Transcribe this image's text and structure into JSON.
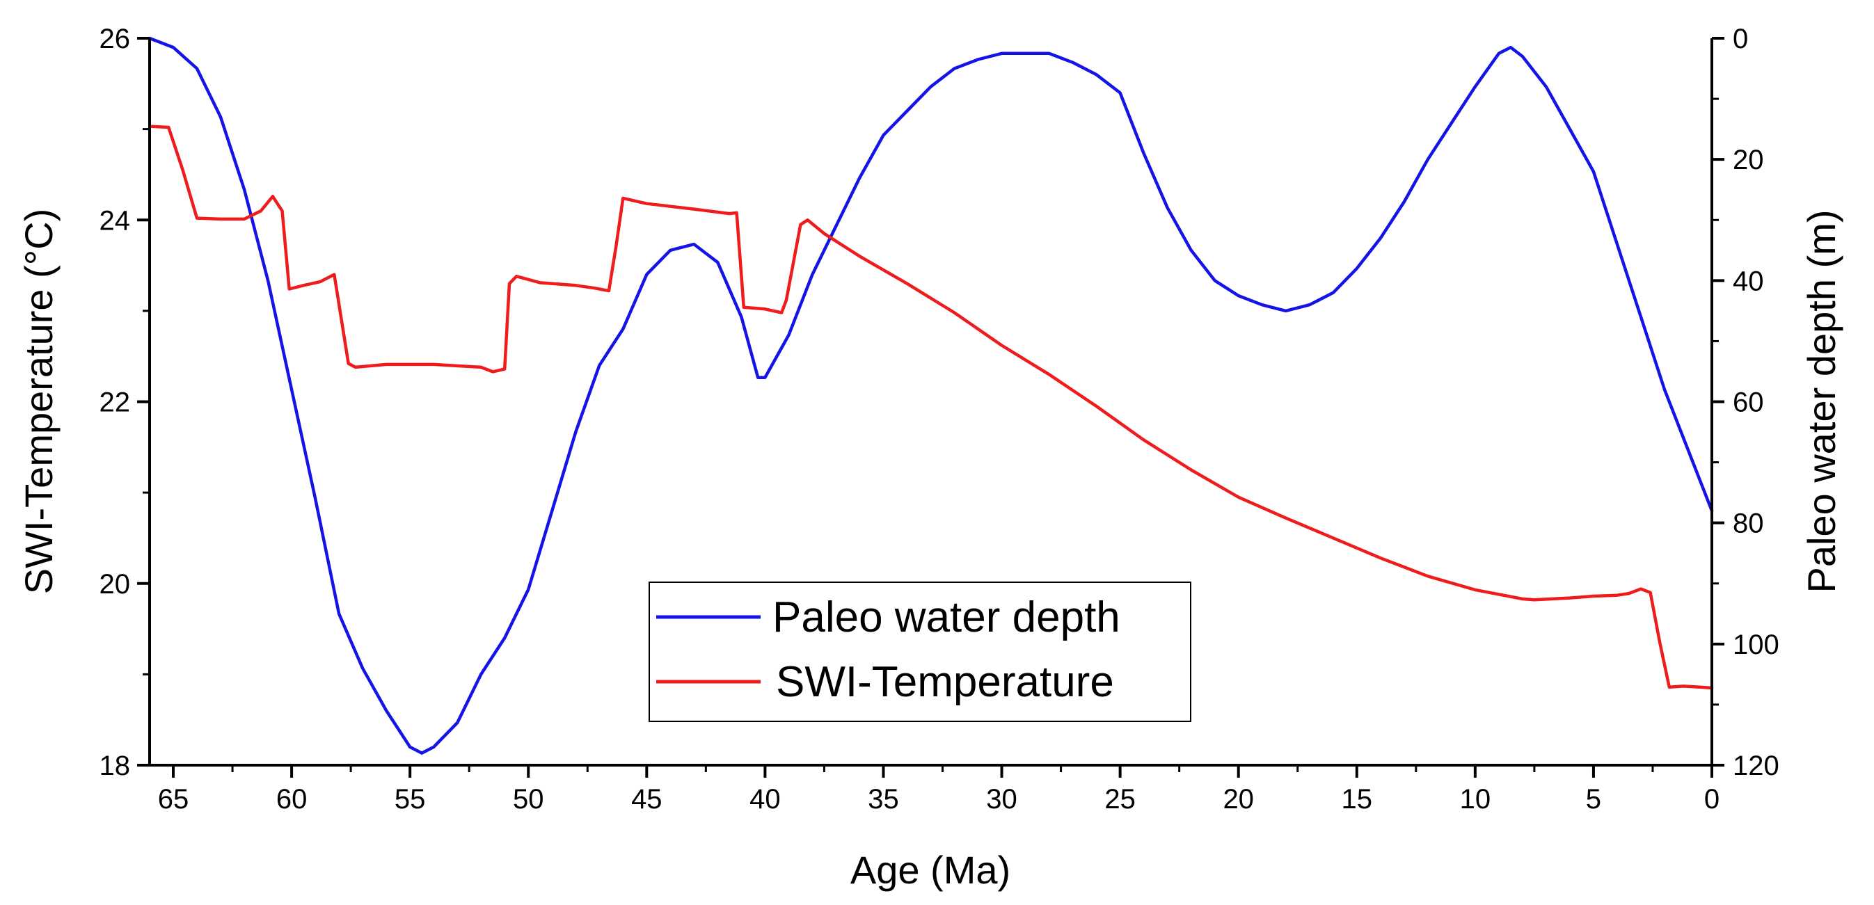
{
  "chart_data": {
    "type": "line",
    "title": "",
    "xlabel": "Age (Ma)",
    "ylabel_left": "SWI-Temperature (°C)",
    "ylabel_right": "Paleo water depth (m)",
    "xlim": [
      66,
      0
    ],
    "ylim_left": [
      18,
      26
    ],
    "ylim_right": [
      120,
      0
    ],
    "x_ticks": [
      "65",
      "60",
      "55",
      "50",
      "45",
      "40",
      "35",
      "30",
      "25",
      "20",
      "15",
      "10",
      "5",
      "0"
    ],
    "left_ticks": [
      "26",
      "24",
      "22",
      "20",
      "18"
    ],
    "right_ticks": [
      "0",
      "20",
      "40",
      "60",
      "80",
      "100",
      "120"
    ],
    "grid": false,
    "legend_position": "bottom-center",
    "series": [
      {
        "name": "Paleo water depth",
        "axis": "right",
        "color": "#1414e6",
        "points": [
          [
            66,
            0
          ],
          [
            65,
            1.5
          ],
          [
            64,
            5
          ],
          [
            63,
            13
          ],
          [
            62,
            25
          ],
          [
            61,
            40
          ],
          [
            60,
            58
          ],
          [
            59,
            76
          ],
          [
            58,
            95
          ],
          [
            57,
            104
          ],
          [
            56,
            111
          ],
          [
            55,
            117
          ],
          [
            54.5,
            118
          ],
          [
            54,
            117
          ],
          [
            53,
            113
          ],
          [
            52,
            105
          ],
          [
            51,
            99
          ],
          [
            50,
            91
          ],
          [
            49,
            78
          ],
          [
            48,
            65
          ],
          [
            47,
            54
          ],
          [
            46,
            48
          ],
          [
            45,
            39
          ],
          [
            44,
            35
          ],
          [
            43,
            34
          ],
          [
            42,
            37
          ],
          [
            41,
            46
          ],
          [
            40.3,
            56
          ],
          [
            40,
            56
          ],
          [
            39,
            49
          ],
          [
            38,
            39
          ],
          [
            37,
            31
          ],
          [
            36,
            23
          ],
          [
            35,
            16
          ],
          [
            34,
            12
          ],
          [
            33,
            8
          ],
          [
            32,
            5
          ],
          [
            31,
            3.5
          ],
          [
            30,
            2.5
          ],
          [
            29,
            2.5
          ],
          [
            28,
            2.5
          ],
          [
            27,
            4
          ],
          [
            26,
            6
          ],
          [
            25,
            9
          ],
          [
            24,
            19
          ],
          [
            23,
            28
          ],
          [
            22,
            35
          ],
          [
            21,
            40
          ],
          [
            20,
            42.5
          ],
          [
            19,
            44
          ],
          [
            18,
            45
          ],
          [
            17,
            44
          ],
          [
            16,
            42
          ],
          [
            15,
            38
          ],
          [
            14,
            33
          ],
          [
            13,
            27
          ],
          [
            12,
            20
          ],
          [
            11,
            14
          ],
          [
            10,
            8
          ],
          [
            9,
            2.5
          ],
          [
            8.5,
            1.5
          ],
          [
            8,
            3
          ],
          [
            7,
            8
          ],
          [
            6,
            15
          ],
          [
            5,
            22
          ],
          [
            4,
            34
          ],
          [
            3,
            46
          ],
          [
            2,
            58
          ],
          [
            1,
            68
          ],
          [
            0,
            78
          ]
        ]
      },
      {
        "name": "SWI-Temperature",
        "axis": "left",
        "color": "#ee1c1c",
        "points": [
          [
            65.9,
            25.03
          ],
          [
            65.2,
            25.02
          ],
          [
            64.6,
            24.55
          ],
          [
            64,
            24.02
          ],
          [
            63,
            24.01
          ],
          [
            62,
            24.01
          ],
          [
            61.3,
            24.1
          ],
          [
            60.8,
            24.26
          ],
          [
            60.4,
            24.1
          ],
          [
            60.1,
            23.24
          ],
          [
            59.5,
            23.28
          ],
          [
            58.8,
            23.32
          ],
          [
            58.2,
            23.4
          ],
          [
            57.6,
            22.42
          ],
          [
            57.3,
            22.38
          ],
          [
            56,
            22.41
          ],
          [
            54,
            22.41
          ],
          [
            52,
            22.38
          ],
          [
            51.5,
            22.33
          ],
          [
            51,
            22.36
          ],
          [
            50.8,
            23.3
          ],
          [
            50.5,
            23.38
          ],
          [
            49.5,
            23.31
          ],
          [
            48,
            23.28
          ],
          [
            47.2,
            23.25
          ],
          [
            46.6,
            23.22
          ],
          [
            46.3,
            23.7
          ],
          [
            46,
            24.24
          ],
          [
            45,
            24.18
          ],
          [
            43,
            24.12
          ],
          [
            41.5,
            24.07
          ],
          [
            41.2,
            24.08
          ],
          [
            40.9,
            23.04
          ],
          [
            40,
            23.02
          ],
          [
            39.3,
            22.98
          ],
          [
            39.1,
            23.12
          ],
          [
            38.5,
            23.95
          ],
          [
            38.2,
            24.0
          ],
          [
            37.5,
            23.85
          ],
          [
            36,
            23.6
          ],
          [
            34,
            23.3
          ],
          [
            32,
            22.98
          ],
          [
            30,
            22.62
          ],
          [
            28,
            22.3
          ],
          [
            26,
            21.95
          ],
          [
            24,
            21.58
          ],
          [
            22,
            21.25
          ],
          [
            20,
            20.95
          ],
          [
            18,
            20.72
          ],
          [
            16,
            20.5
          ],
          [
            14,
            20.28
          ],
          [
            12,
            20.08
          ],
          [
            10,
            19.93
          ],
          [
            9,
            19.88
          ],
          [
            8,
            19.83
          ],
          [
            7.5,
            19.82
          ],
          [
            6,
            19.84
          ],
          [
            5,
            19.86
          ],
          [
            4,
            19.87
          ],
          [
            3.5,
            19.89
          ],
          [
            3,
            19.94
          ],
          [
            2.6,
            19.9
          ],
          [
            2.2,
            19.35
          ],
          [
            1.8,
            18.86
          ],
          [
            1.2,
            18.87
          ],
          [
            0.5,
            18.86
          ],
          [
            0,
            18.85
          ]
        ]
      }
    ]
  }
}
